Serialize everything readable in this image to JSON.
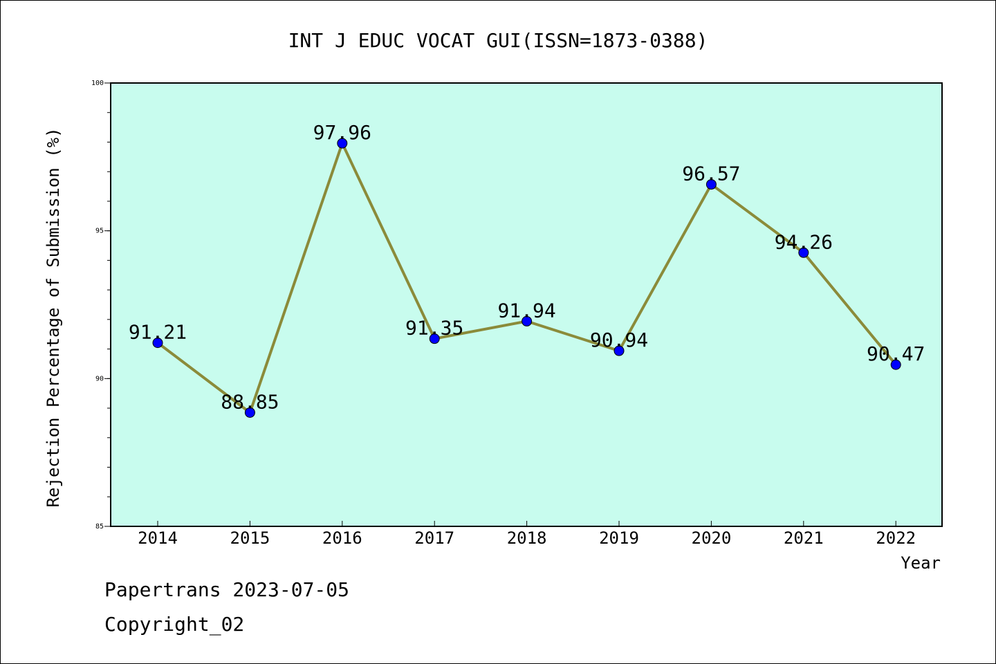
{
  "chart_data": {
    "type": "line",
    "title": "INT J EDUC VOCAT GUI(ISSN=1873-0388)",
    "xlabel": "Year",
    "ylabel": "Rejection Percentage of Submission (%)",
    "categories": [
      "2014",
      "2015",
      "2016",
      "2017",
      "2018",
      "2019",
      "2020",
      "2021",
      "2022"
    ],
    "values": [
      91.21,
      88.85,
      97.96,
      91.35,
      91.94,
      90.94,
      96.57,
      94.26,
      90.47
    ],
    "data_labels": [
      "91.21",
      "88.85",
      "97.96",
      "91.35",
      "91.94",
      "90.94",
      "96.57",
      "94.26",
      "90.47"
    ],
    "ylim": [
      85,
      100
    ],
    "y_ticks": [
      85,
      90,
      95,
      100
    ],
    "y_tick_labels": [
      "85",
      "90",
      "95",
      "100"
    ],
    "grid": false,
    "colors": {
      "plot_background": "#c8fcee",
      "line": "#8b8b3a",
      "marker": "#0000ff"
    }
  },
  "footer": {
    "line1": "Papertrans 2023-07-05",
    "line2": "Copyright_02"
  }
}
